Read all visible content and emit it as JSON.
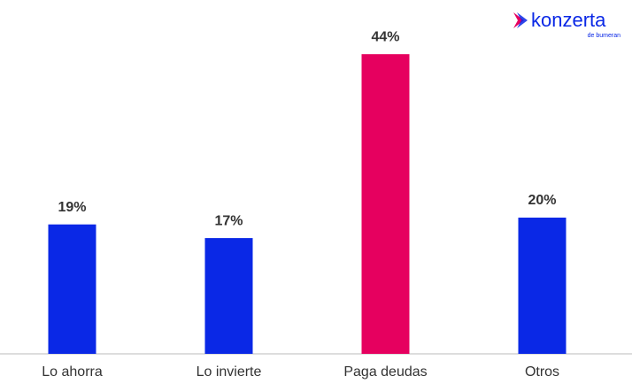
{
  "chart_data": {
    "type": "bar",
    "categories": [
      "Lo ahorra",
      "Lo invierte",
      "Paga deudas",
      "Otros"
    ],
    "values": [
      19,
      17,
      44,
      20
    ],
    "value_labels": [
      "19%",
      "17%",
      "44%",
      "20%"
    ],
    "colors": [
      "#0a28e6",
      "#0a28e6",
      "#e6005f",
      "#0a28e6"
    ],
    "ylim": [
      0,
      50
    ],
    "logo": {
      "name": "konzerta",
      "tagline": "de bumeran"
    }
  }
}
